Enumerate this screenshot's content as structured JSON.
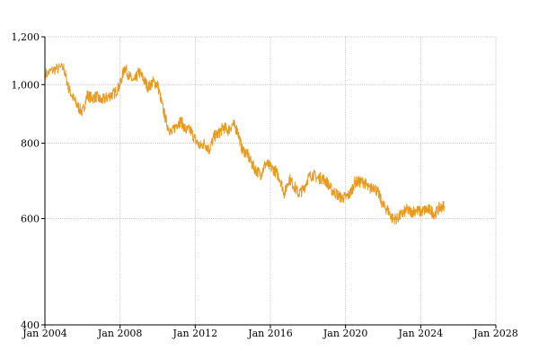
{
  "chart_data": {
    "type": "line",
    "title": "",
    "xlabel": "",
    "ylabel": "",
    "x_axis": "date",
    "xlim": [
      "2004-01-01",
      "2028-01-01"
    ],
    "ylim": [
      400,
      1200
    ],
    "y_scale": "log",
    "grid": true,
    "legend": "none",
    "x_ticks": [
      {
        "value": "2004-01-01",
        "label": "Jan 2004"
      },
      {
        "value": "2008-01-01",
        "label": "Jan 2008"
      },
      {
        "value": "2012-01-01",
        "label": "Jan 2012"
      },
      {
        "value": "2016-01-01",
        "label": "Jan 2016"
      },
      {
        "value": "2020-01-01",
        "label": "Jan 2020"
      },
      {
        "value": "2024-01-01",
        "label": "Jan 2024"
      },
      {
        "value": "2028-01-01",
        "label": "Jan 2028"
      }
    ],
    "y_ticks": [
      {
        "value": 400,
        "label": "400"
      },
      {
        "value": 600,
        "label": "600"
      },
      {
        "value": 800,
        "label": "800"
      },
      {
        "value": 1000,
        "label": "1,000"
      },
      {
        "value": 1200,
        "label": "1,200"
      }
    ],
    "series": [
      {
        "color": "#e69a1e",
        "x": [
          "2004-01-15",
          "2004-07-01",
          "2005-01-01",
          "2005-04-01",
          "2005-07-01",
          "2005-10-01",
          "2006-01-01",
          "2006-04-01",
          "2006-07-01",
          "2006-10-01",
          "2007-01-01",
          "2007-04-01",
          "2007-07-01",
          "2007-10-01",
          "2008-01-01",
          "2008-04-01",
          "2008-07-01",
          "2008-10-01",
          "2009-01-01",
          "2009-04-01",
          "2009-07-01",
          "2009-10-01",
          "2010-01-01",
          "2010-04-01",
          "2010-07-01",
          "2010-10-01",
          "2011-01-01",
          "2011-04-01",
          "2011-07-01",
          "2011-10-01",
          "2012-01-01",
          "2012-04-01",
          "2012-07-01",
          "2012-10-01",
          "2013-01-01",
          "2013-04-01",
          "2013-07-01",
          "2013-10-01",
          "2014-01-01",
          "2014-04-01",
          "2014-07-01",
          "2014-10-01",
          "2015-01-01",
          "2015-04-01",
          "2015-07-01",
          "2015-10-01",
          "2016-01-01",
          "2016-04-01",
          "2016-07-01",
          "2016-10-01",
          "2017-01-01",
          "2017-04-01",
          "2017-07-01",
          "2017-10-01",
          "2018-01-01",
          "2018-04-01",
          "2018-07-01",
          "2018-10-01",
          "2019-01-01",
          "2019-04-01",
          "2019-07-01",
          "2019-10-01",
          "2020-01-01",
          "2020-04-01",
          "2020-07-01",
          "2020-10-01",
          "2021-01-01",
          "2021-04-01",
          "2021-07-01",
          "2021-10-01",
          "2022-01-01",
          "2022-04-01",
          "2022-07-01",
          "2022-10-01",
          "2023-01-01",
          "2023-04-01",
          "2023-07-01",
          "2023-10-01",
          "2024-01-01",
          "2024-04-01",
          "2024-07-01",
          "2024-10-01",
          "2025-01-01",
          "2025-04-01"
        ],
        "y": [
          1040,
          1060,
          1065,
          990,
          950,
          920,
          900,
          960,
          950,
          955,
          940,
          950,
          960,
          970,
          1000,
          1070,
          1030,
          1010,
          1050,
          1020,
          990,
          1010,
          1000,
          920,
          860,
          830,
          860,
          870,
          840,
          840,
          810,
          790,
          800,
          780,
          820,
          830,
          850,
          840,
          860,
          840,
          780,
          770,
          740,
          720,
          710,
          740,
          730,
          720,
          700,
          660,
          700,
          680,
          660,
          670,
          700,
          710,
          700,
          700,
          690,
          670,
          660,
          650,
          650,
          660,
          690,
          690,
          690,
          670,
          680,
          660,
          630,
          620,
          600,
          600,
          610,
          620,
          615,
          620,
          615,
          620,
          620,
          610,
          625,
          630
        ]
      }
    ]
  }
}
